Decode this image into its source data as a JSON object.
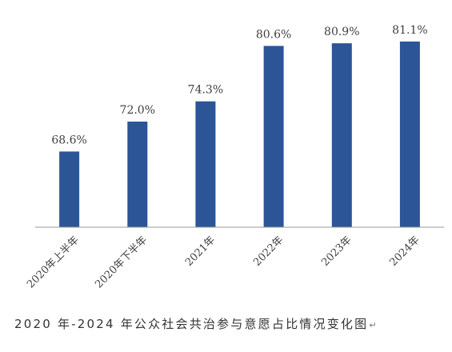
{
  "chart_data": {
    "type": "bar",
    "categories": [
      "2020年上半年",
      "2020年下半年",
      "2021年",
      "2022年",
      "2023年",
      "2024年"
    ],
    "values": [
      68.6,
      72.0,
      74.3,
      80.6,
      80.9,
      81.1
    ],
    "value_labels": [
      "68.6%",
      "72.0%",
      "74.3%",
      "80.6%",
      "80.9%",
      "81.1%"
    ],
    "title": "",
    "xlabel": "",
    "ylabel": "",
    "ylim": [
      60,
      82
    ],
    "grid": false,
    "legend": "none",
    "bar_color": "#2B5597",
    "axis_color": "#999999"
  },
  "caption": {
    "text": "2020 年-2024 年公众社会共治参与意愿占比情况变化图",
    "mark": "↵"
  }
}
